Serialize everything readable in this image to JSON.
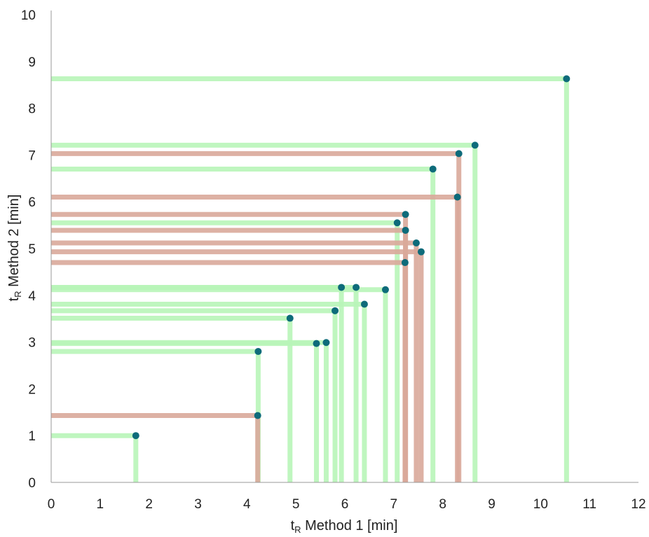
{
  "chart_data": {
    "type": "scatter",
    "xlabel": {
      "main": "t",
      "sub": "R",
      "rest": " Method 1 [min]"
    },
    "ylabel": {
      "main": "t",
      "sub": "R",
      "rest": " Method 2 [min]"
    },
    "xlim": [
      0,
      12
    ],
    "ylim": [
      0,
      10
    ],
    "x_ticks": [
      "0",
      "1",
      "2",
      "3",
      "4",
      "5",
      "6",
      "7",
      "8",
      "9",
      "10",
      "11",
      "12"
    ],
    "y_ticks": [
      "0",
      "1",
      "2",
      "3",
      "4",
      "5",
      "6",
      "7",
      "8",
      "9",
      "10"
    ],
    "grid": false,
    "colors": {
      "light": "#b8f5b8",
      "dark": "#d9a99a",
      "point": "#0e6b7a",
      "axis": "#999999"
    },
    "points": [
      {
        "x": 1.73,
        "y": 1.0,
        "style": "light"
      },
      {
        "x": 4.22,
        "y": 1.43,
        "style": "dark"
      },
      {
        "x": 4.23,
        "y": 2.8,
        "style": "light"
      },
      {
        "x": 4.88,
        "y": 3.51,
        "style": "light"
      },
      {
        "x": 5.42,
        "y": 2.97,
        "style": "light"
      },
      {
        "x": 5.62,
        "y": 2.99,
        "style": "light"
      },
      {
        "x": 5.8,
        "y": 3.67,
        "style": "light"
      },
      {
        "x": 5.93,
        "y": 4.17,
        "style": "light"
      },
      {
        "x": 6.23,
        "y": 4.17,
        "style": "light"
      },
      {
        "x": 6.4,
        "y": 3.81,
        "style": "light"
      },
      {
        "x": 6.83,
        "y": 4.12,
        "style": "light"
      },
      {
        "x": 7.07,
        "y": 5.55,
        "style": "light"
      },
      {
        "x": 7.24,
        "y": 5.73,
        "style": "dark"
      },
      {
        "x": 7.24,
        "y": 5.39,
        "style": "dark"
      },
      {
        "x": 7.23,
        "y": 4.7,
        "style": "dark"
      },
      {
        "x": 7.46,
        "y": 5.12,
        "style": "dark"
      },
      {
        "x": 7.56,
        "y": 4.93,
        "style": "dark"
      },
      {
        "x": 7.8,
        "y": 6.7,
        "style": "light"
      },
      {
        "x": 8.3,
        "y": 6.1,
        "style": "dark"
      },
      {
        "x": 8.33,
        "y": 7.03,
        "style": "dark"
      },
      {
        "x": 8.66,
        "y": 7.21,
        "style": "light"
      },
      {
        "x": 10.53,
        "y": 8.63,
        "style": "light"
      }
    ]
  }
}
